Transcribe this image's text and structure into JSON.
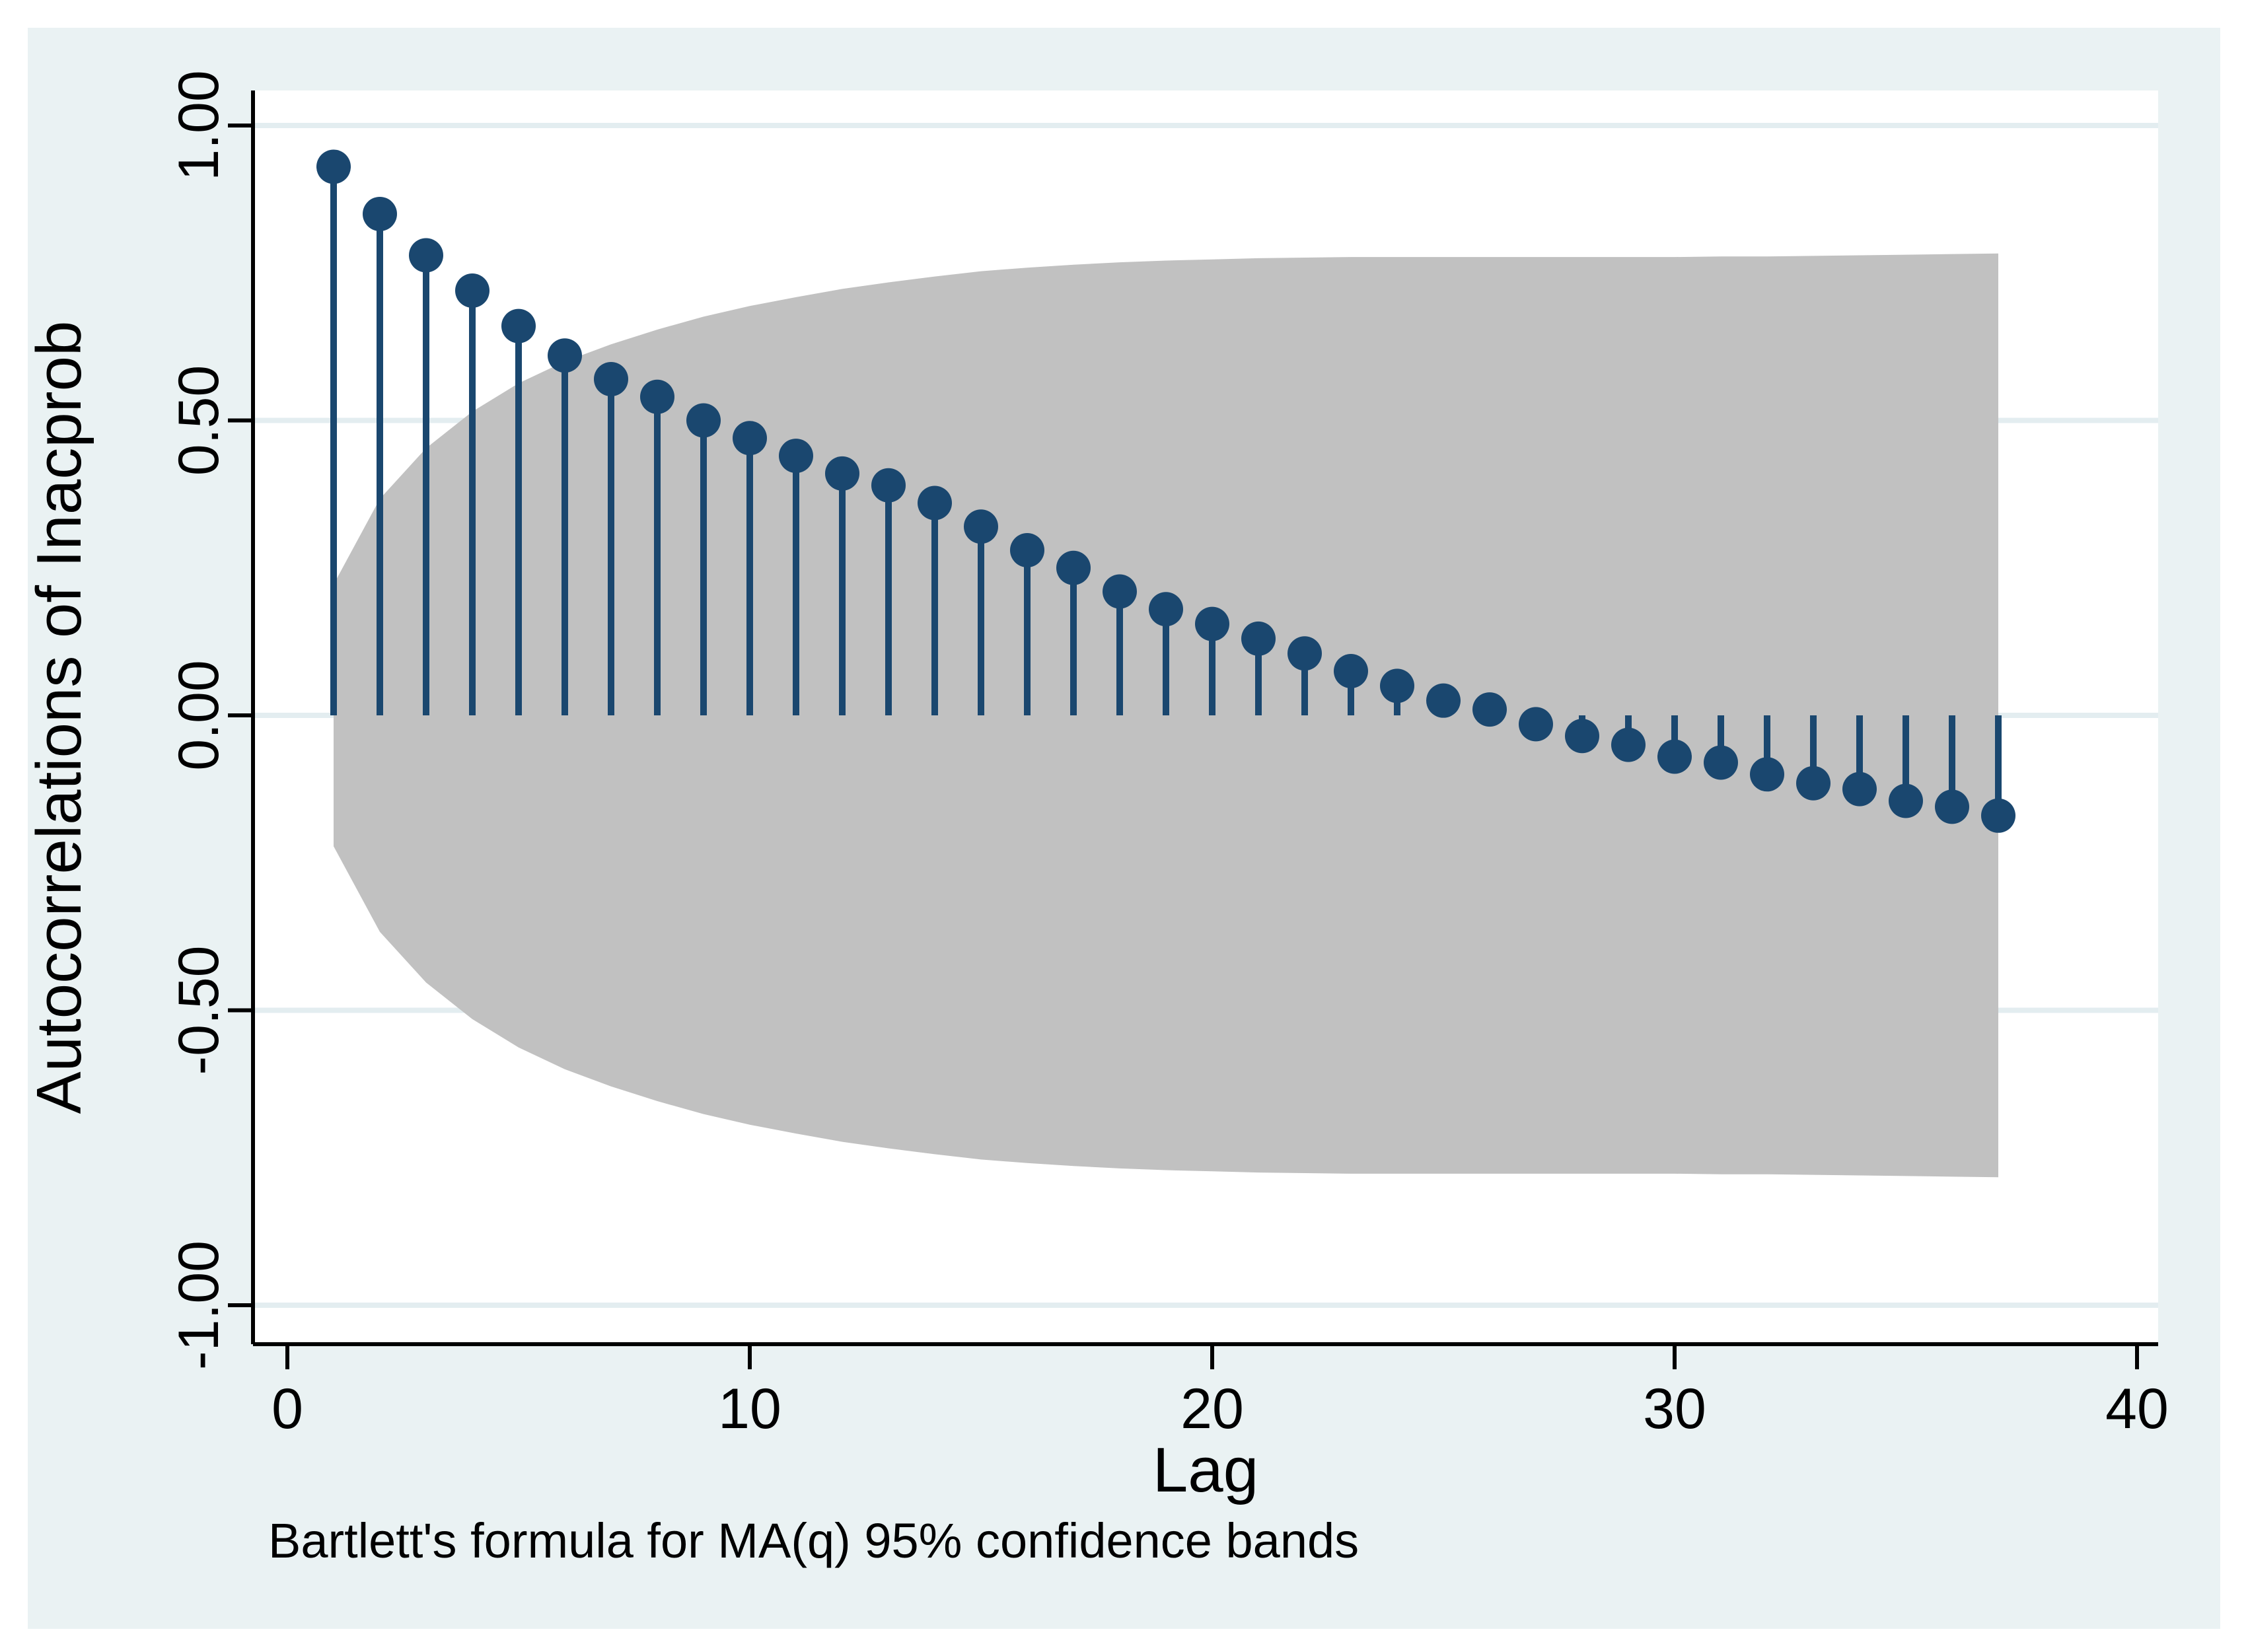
{
  "figure": {
    "page_bg": "#ffffff",
    "panel_bg": "#eaf2f3",
    "plot_bg": "#ffffff",
    "grid_color": "#e3edf0",
    "axis_color": "#000000",
    "stem_color": "#1a476f",
    "marker_color": "#1a476f",
    "band_color": "#c1c1c1"
  },
  "y_axis": {
    "title": "Autocorrelations of Inacprob",
    "tick_labels": [
      "1.00",
      "0.50",
      "0.00",
      "-0.50",
      "-1.00"
    ],
    "tick_values": [
      1.0,
      0.5,
      0.0,
      -0.5,
      -1.0
    ]
  },
  "x_axis": {
    "title": "Lag",
    "tick_labels": [
      "0",
      "10",
      "20",
      "30",
      "40"
    ],
    "tick_values": [
      0,
      10,
      20,
      30,
      40
    ]
  },
  "note": "Bartlett's formula for MA(q) 95% confidence bands",
  "chart_data": {
    "type": "stem",
    "title": "",
    "xlabel": "Lag",
    "ylabel": "Autocorrelations of Inacprob",
    "xlim": [
      0,
      40
    ],
    "ylim": [
      -1.0,
      1.0
    ],
    "grid": true,
    "legend_position": "none",
    "n_lags": 37,
    "lags": [
      1,
      2,
      3,
      4,
      5,
      6,
      7,
      8,
      9,
      10,
      11,
      12,
      13,
      14,
      15,
      16,
      17,
      18,
      19,
      20,
      21,
      22,
      23,
      24,
      25,
      26,
      27,
      28,
      29,
      30,
      31,
      32,
      33,
      34,
      35,
      36,
      37
    ],
    "acf": [
      0.93,
      0.85,
      0.78,
      0.72,
      0.66,
      0.61,
      0.57,
      0.54,
      0.5,
      0.47,
      0.44,
      0.41,
      0.39,
      0.36,
      0.32,
      0.28,
      0.25,
      0.21,
      0.18,
      0.155,
      0.13,
      0.105,
      0.075,
      0.05,
      0.025,
      0.01,
      -0.015,
      -0.035,
      -0.05,
      -0.07,
      -0.08,
      -0.1,
      -0.115,
      -0.125,
      -0.145,
      -0.155,
      -0.17
    ],
    "band_upper": [
      0.222,
      0.367,
      0.453,
      0.515,
      0.563,
      0.6,
      0.629,
      0.654,
      0.676,
      0.694,
      0.709,
      0.723,
      0.734,
      0.744,
      0.753,
      0.759,
      0.764,
      0.768,
      0.771,
      0.773,
      0.775,
      0.776,
      0.777,
      0.777,
      0.777,
      0.777,
      0.777,
      0.777,
      0.777,
      0.777,
      0.778,
      0.778,
      0.779,
      0.78,
      0.781,
      0.782,
      0.783
    ],
    "band_note": "confidence band is symmetric: lower = -upper"
  }
}
